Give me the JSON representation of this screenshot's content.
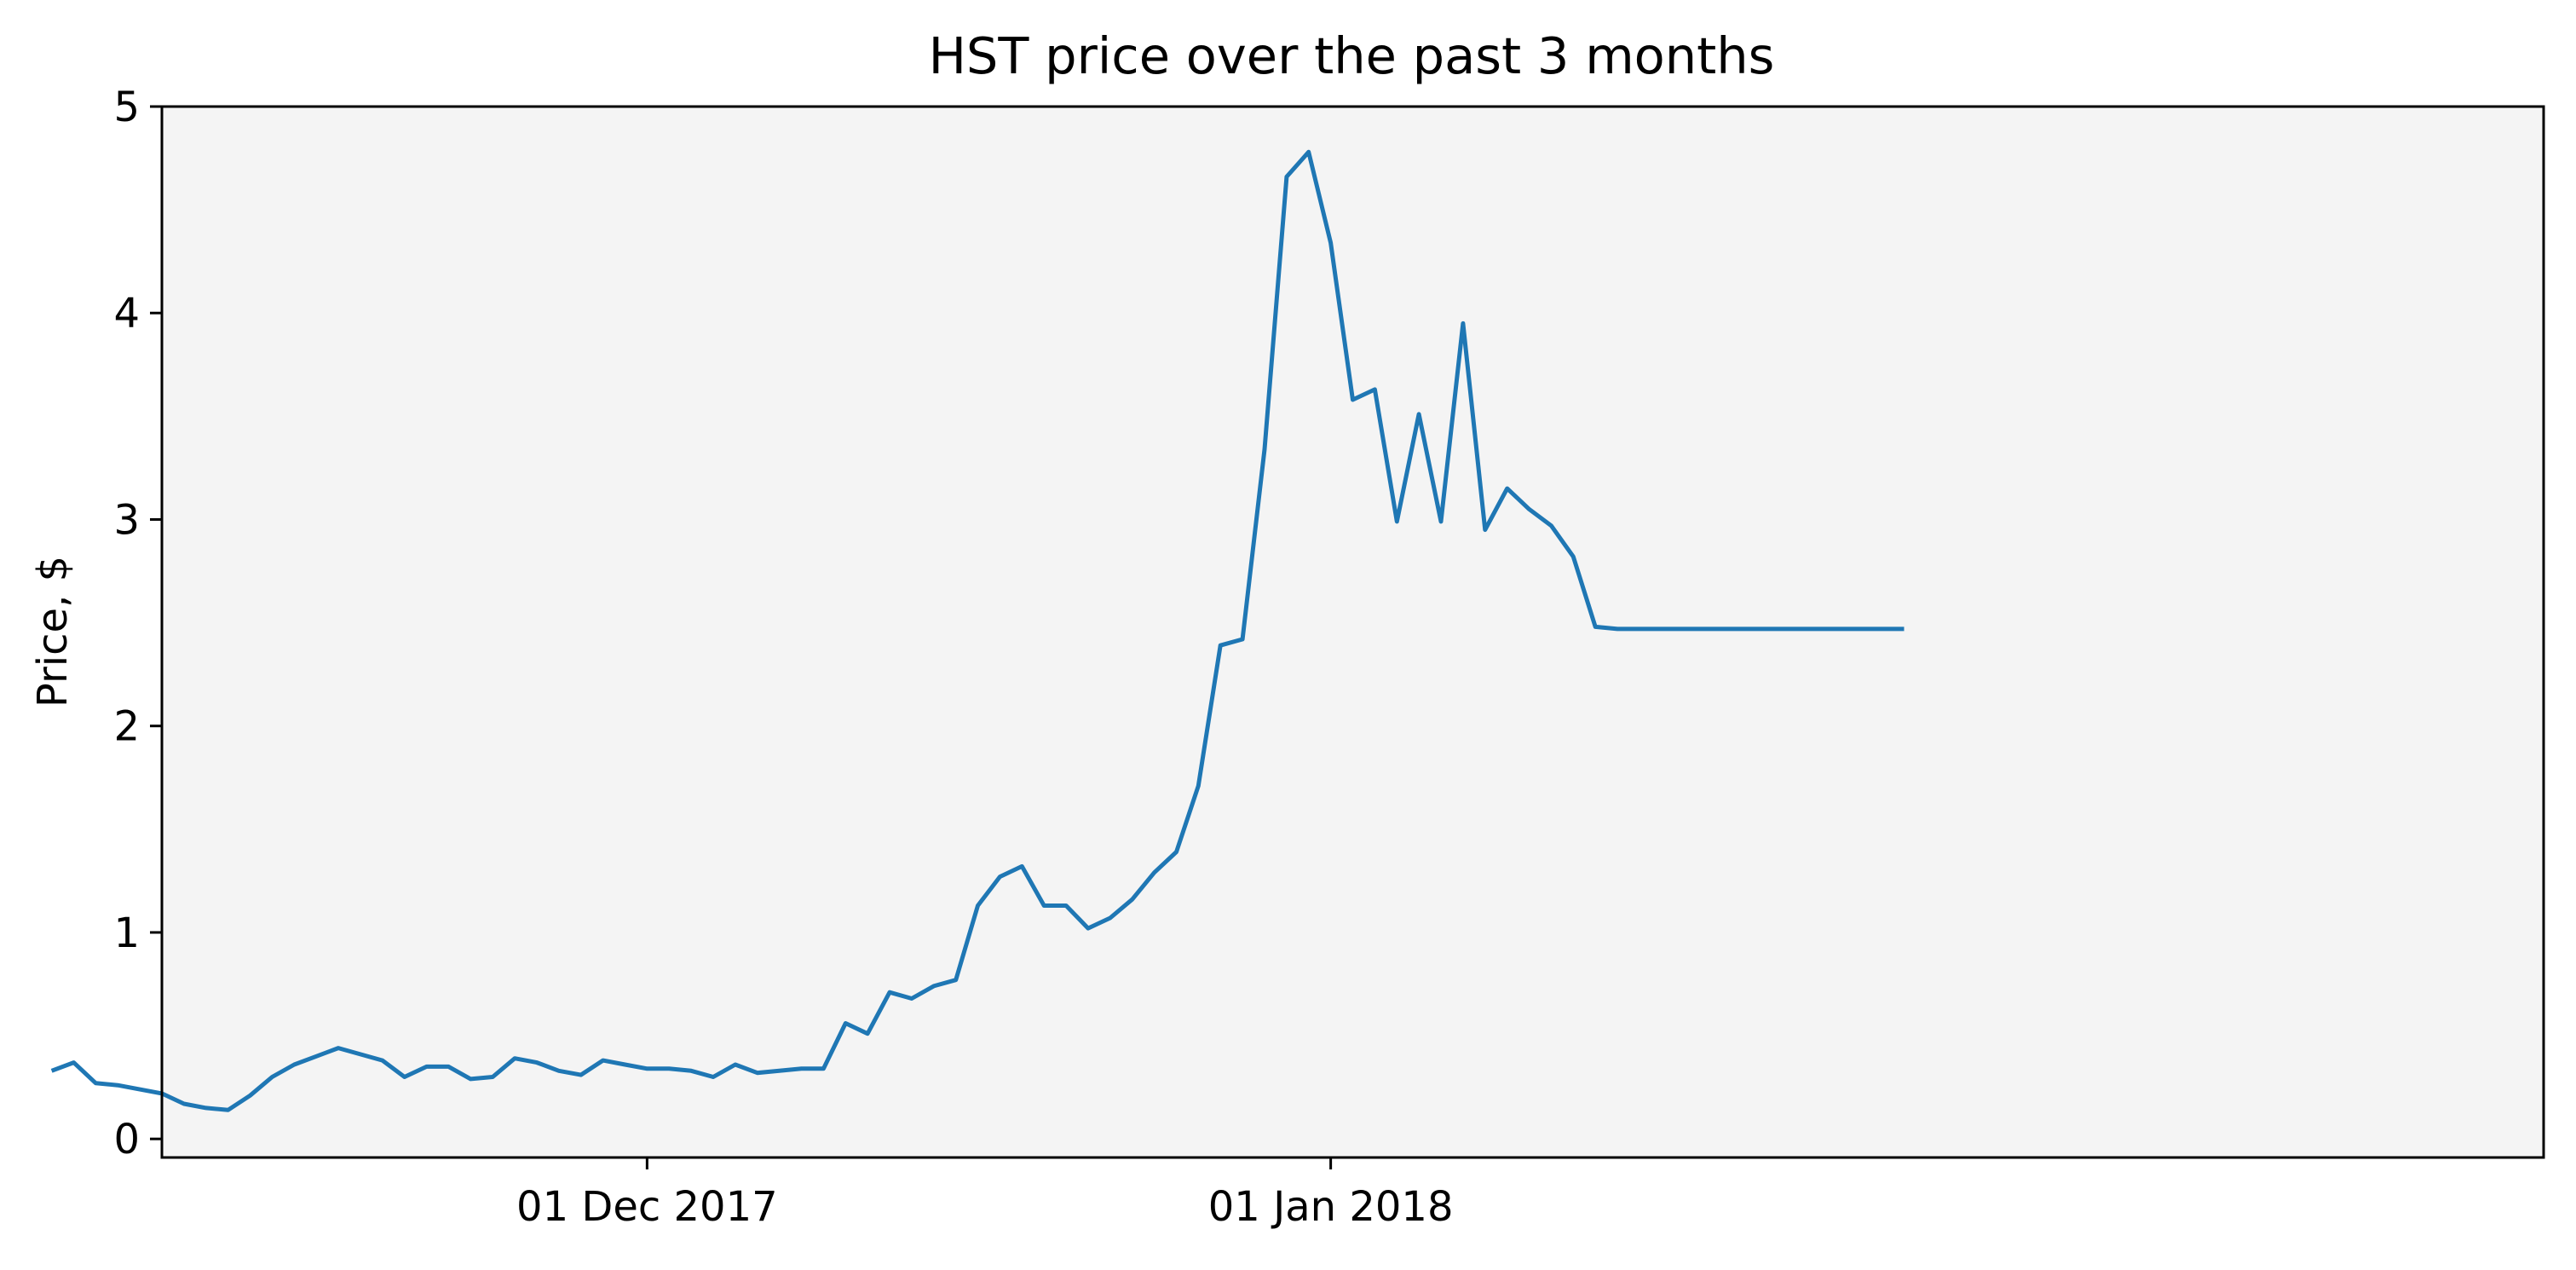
{
  "chart_data": {
    "type": "line",
    "title": "HST price over the past 3 months",
    "xlabel": "",
    "ylabel": "Price, $",
    "x_tick_labels": [
      {
        "date": "2017-12-01",
        "label": "01 Dec 2017"
      },
      {
        "date": "2018-01-01",
        "label": "01 Jan 2018"
      }
    ],
    "y_ticks": [
      0,
      1,
      2,
      3,
      4,
      5
    ],
    "ylim": [
      -0.09,
      5.0
    ],
    "xlim": [
      "2017-11-09",
      "2018-02-25"
    ],
    "grid": false,
    "background_color": "#f4f4f4",
    "line_color": "#1f77b4",
    "series": [
      {
        "x": [
          "2017-11-04",
          "2017-11-05",
          "2017-11-06",
          "2017-11-07",
          "2017-11-08",
          "2017-11-09",
          "2017-11-10",
          "2017-11-11",
          "2017-11-12",
          "2017-11-13",
          "2017-11-14",
          "2017-11-15",
          "2017-11-16",
          "2017-11-17",
          "2017-11-18",
          "2017-11-19",
          "2017-11-20",
          "2017-11-21",
          "2017-11-22",
          "2017-11-23",
          "2017-11-24",
          "2017-11-25",
          "2017-11-26",
          "2017-11-27",
          "2017-11-28",
          "2017-11-29",
          "2017-11-30",
          "2017-12-01",
          "2017-12-02",
          "2017-12-03",
          "2017-12-04",
          "2017-12-05",
          "2017-12-06",
          "2017-12-07",
          "2017-12-08",
          "2017-12-09",
          "2017-12-10",
          "2017-12-11",
          "2017-12-12",
          "2017-12-13",
          "2017-12-14",
          "2017-12-15",
          "2017-12-16",
          "2017-12-17",
          "2017-12-18",
          "2017-12-19",
          "2017-12-20",
          "2017-12-21",
          "2017-12-22",
          "2017-12-23",
          "2017-12-24",
          "2017-12-25",
          "2017-12-26",
          "2017-12-27",
          "2017-12-28",
          "2017-12-29",
          "2017-12-30",
          "2017-12-31",
          "2018-01-01",
          "2018-01-02",
          "2018-01-03",
          "2018-01-04",
          "2018-01-05",
          "2018-01-06",
          "2018-01-07",
          "2018-01-08",
          "2018-01-09",
          "2018-01-10",
          "2018-01-11",
          "2018-01-12",
          "2018-01-13",
          "2018-01-14",
          "2018-01-15",
          "2018-01-16",
          "2018-01-17",
          "2018-01-18",
          "2018-01-19",
          "2018-01-20",
          "2018-01-21",
          "2018-01-22",
          "2018-01-23",
          "2018-01-24",
          "2018-01-25",
          "2018-01-26",
          "2018-01-27"
        ],
        "values": [
          0.33,
          0.37,
          0.27,
          0.26,
          0.24,
          0.22,
          0.17,
          0.15,
          0.14,
          0.21,
          0.3,
          0.36,
          0.4,
          0.44,
          0.41,
          0.38,
          0.3,
          0.35,
          0.35,
          0.29,
          0.3,
          0.39,
          0.37,
          0.33,
          0.31,
          0.38,
          0.36,
          0.34,
          0.34,
          0.33,
          0.3,
          0.36,
          0.32,
          0.33,
          0.34,
          0.34,
          0.56,
          0.51,
          0.71,
          0.68,
          0.74,
          0.77,
          1.13,
          1.27,
          1.32,
          1.13,
          1.13,
          1.02,
          1.07,
          1.16,
          1.29,
          1.39,
          1.71,
          2.39,
          2.42,
          3.34,
          4.66,
          4.78,
          4.34,
          3.58,
          3.63,
          2.99,
          3.51,
          2.99,
          3.95,
          2.95,
          3.15,
          3.05,
          2.97,
          2.82,
          2.48,
          2.47,
          2.47,
          2.47,
          2.47,
          2.47,
          2.47,
          2.47,
          2.47,
          2.47,
          2.47,
          2.47,
          2.47,
          2.47,
          2.47
        ]
      }
    ]
  }
}
